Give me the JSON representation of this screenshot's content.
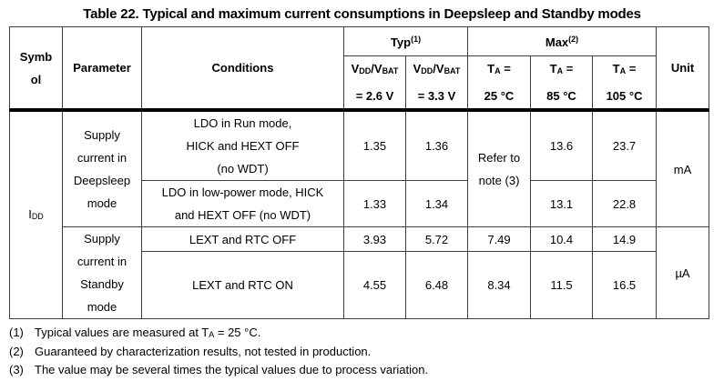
{
  "title": "Table 22. Typical and maximum current consumptions in Deepsleep and Standby modes",
  "colors": {
    "background": "#ffffff",
    "text": "#000000",
    "grid_border": "#3f3f3f",
    "header_rule": "#000000"
  },
  "header": {
    "symbol_lines": [
      "Symb",
      "ol"
    ],
    "parameter": "Parameter",
    "conditions": "Conditions",
    "unit": "Unit",
    "typ": {
      "label": "Typ",
      "note": "(1)"
    },
    "max": {
      "label": "Max",
      "note": "(2)"
    },
    "typ_subcols": [
      {
        "v": "V",
        "v_sub": "DD",
        "v2": "/V",
        "v2_sub": "BAT",
        "line2": "= 2.6 V"
      },
      {
        "v": "V",
        "v_sub": "DD",
        "v2": "/V",
        "v2_sub": "BAT",
        "line2": "= 3.3 V"
      }
    ],
    "max_subcols": [
      {
        "t": "T",
        "t_sub": "A",
        "eq": " =",
        "line2": "25 °C"
      },
      {
        "t": "T",
        "t_sub": "A",
        "eq": " =",
        "line2": "85 °C"
      },
      {
        "t": "T",
        "t_sub": "A",
        "eq": " =",
        "line2": "105 °C"
      }
    ]
  },
  "body": {
    "symbol": {
      "base": "I",
      "sub": "DD"
    },
    "groups": [
      {
        "parameter_lines": [
          "Supply",
          "current in",
          "Deepsleep",
          "mode"
        ],
        "unit": "mA",
        "max25_merged_lines": [
          "Refer to",
          "note (3)"
        ],
        "rows": [
          {
            "conditions_lines": [
              "LDO in Run mode,",
              "HICK and HEXT OFF",
              "(no WDT)"
            ],
            "typ_26": "1.35",
            "typ_33": "1.36",
            "max_85": "13.6",
            "max_105": "23.7"
          },
          {
            "conditions_lines": [
              "LDO in low-power mode, HICK",
              "and HEXT OFF (no WDT)"
            ],
            "typ_26": "1.33",
            "typ_33": "1.34",
            "max_85": "13.1",
            "max_105": "22.8"
          }
        ]
      },
      {
        "parameter_lines": [
          "Supply",
          "current in",
          "Standby",
          "mode"
        ],
        "unit": "µA",
        "rows": [
          {
            "conditions_lines": [
              "LEXT and RTC OFF"
            ],
            "typ_26": "3.93",
            "typ_33": "5.72",
            "max_25": "7.49",
            "max_85": "10.4",
            "max_105": "14.9"
          },
          {
            "conditions_lines": [
              "LEXT and RTC ON"
            ],
            "typ_26": "4.55",
            "typ_33": "6.48",
            "max_25": "8.34",
            "max_85": "11.5",
            "max_105": "16.5"
          }
        ]
      }
    ]
  },
  "footnotes": [
    {
      "marker": "(1)",
      "pre": "Typical values are measured at T",
      "sub": "A",
      "post": " = 25 °C."
    },
    {
      "marker": "(2)",
      "pre": "Guaranteed by characterization results, not tested in production.",
      "sub": "",
      "post": ""
    },
    {
      "marker": "(3)",
      "pre": "The value may be several times the typical values due to process variation.",
      "sub": "",
      "post": ""
    }
  ]
}
